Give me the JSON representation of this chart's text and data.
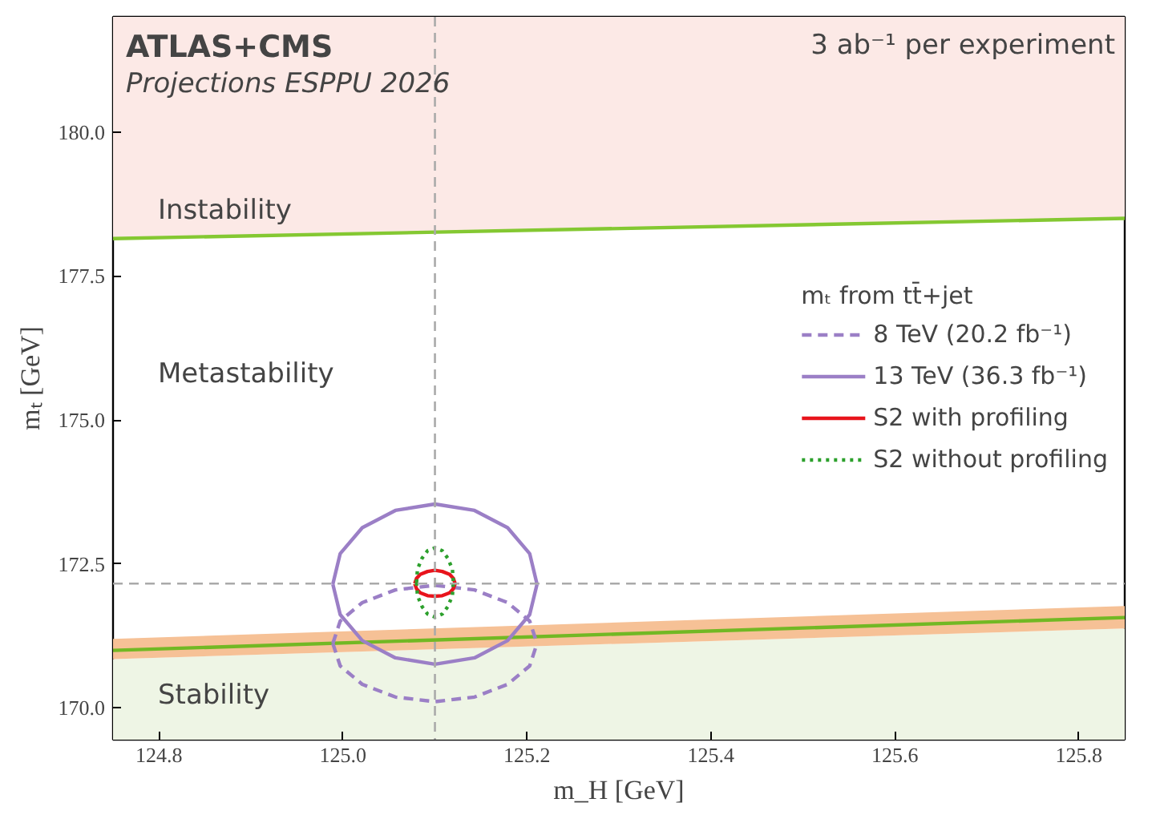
{
  "chart_data": {
    "type": "line",
    "xlabel": "m_H [GeV]",
    "ylabel": "mₜ [GeV]",
    "legend_title": "mₜ from tt̄+jet",
    "xlim": [
      124.75,
      125.85
    ],
    "ylim": [
      169.45,
      182.0
    ],
    "xticks": [
      124.8,
      {
        "value": 125.0,
        "label": "125.0"
      },
      125.2,
      125.4,
      125.6,
      125.8
    ],
    "yticks": [
      {
        "value": 170.0,
        "label": "170.0"
      },
      172.5,
      {
        "value": 175.0,
        "label": "175.0"
      },
      177.5,
      {
        "value": 180.0,
        "label": "180.0"
      }
    ],
    "grid": false,
    "legend": "right",
    "marker": "none",
    "series": [
      {
        "color": "#84c832",
        "line_style": "solid",
        "x": [
          124.75,
          125.85
        ],
        "values": [
          178.15,
          178.5
        ]
      },
      {
        "color": "#72b824",
        "line_style": "solid",
        "x": [
          124.75,
          125.85
        ],
        "values": [
          171.0,
          171.57
        ],
        "lower": [
          170.85,
          171.38
        ],
        "upper": [
          171.2,
          171.77
        ]
      },
      {
        "type": "area",
        "color": "#eef5e5",
        "x": [
          124.75,
          125.85
        ],
        "values": [
          170.85,
          171.38
        ]
      },
      {
        "name": "8 TeV (20.2 fb⁻¹)",
        "color": "#9b7fc6",
        "line_style": "dashed",
        "x": [
          124.989,
          124.997,
          125.021,
          125.057,
          125.1,
          125.143,
          125.179,
          125.203,
          125.211,
          null,
          124.989,
          124.997,
          125.021,
          125.057,
          125.1,
          125.143,
          125.179,
          125.203,
          125.211
        ],
        "values": [
          171.12,
          171.51,
          171.83,
          172.05,
          172.13,
          172.05,
          171.83,
          171.51,
          171.12,
          null,
          171.12,
          170.73,
          170.41,
          170.19,
          170.11,
          170.19,
          170.41,
          170.73,
          171.12
        ]
      },
      {
        "name": "13 TeV (36.3 fb⁻¹)",
        "color": "#9b7fc6",
        "line_style": "solid",
        "x": [
          124.989,
          124.997,
          125.021,
          125.057,
          125.1,
          125.143,
          125.179,
          125.203,
          125.211,
          null,
          124.989,
          124.997,
          125.021,
          125.057,
          125.1,
          125.143,
          125.179,
          125.203,
          125.211
        ],
        "values": [
          172.15,
          172.68,
          173.13,
          173.43,
          173.54,
          173.43,
          173.13,
          172.68,
          172.15,
          null,
          172.15,
          171.62,
          171.17,
          170.87,
          170.76,
          170.87,
          171.17,
          171.62,
          172.15
        ]
      },
      {
        "name": "S2 with profiling",
        "color": "#e8141c",
        "line_style": "solid",
        "x": [
          125.078,
          125.08,
          125.084,
          125.092,
          125.1,
          125.108,
          125.116,
          125.12,
          125.122,
          null,
          125.078,
          125.08,
          125.084,
          125.092,
          125.1,
          125.108,
          125.116,
          125.12,
          125.122
        ],
        "values": [
          172.16,
          172.25,
          172.32,
          172.37,
          172.39,
          172.37,
          172.32,
          172.25,
          172.16,
          null,
          172.16,
          172.07,
          172.0,
          171.95,
          171.94,
          171.95,
          172.0,
          172.07,
          172.16
        ]
      },
      {
        "name": "S2 without profiling",
        "color": "#2ca02c",
        "line_style": "dotted",
        "x": [
          125.08,
          125.081,
          125.086,
          125.092,
          125.1,
          125.108,
          125.114,
          125.119,
          125.12,
          null,
          125.08,
          125.081,
          125.086,
          125.092,
          125.1,
          125.108,
          125.114,
          125.119,
          125.12
        ],
        "values": [
          172.18,
          172.41,
          172.6,
          172.73,
          172.78,
          172.73,
          172.6,
          172.41,
          172.18,
          null,
          172.18,
          171.95,
          171.76,
          171.63,
          171.58,
          171.63,
          171.76,
          171.95,
          172.18
        ]
      }
    ],
    "ref_lines": [
      {
        "axis": "x",
        "value": 125.1,
        "color": "#aaaaaa",
        "line_style": "dashed"
      },
      {
        "axis": "y",
        "value": 172.16,
        "color": "#aaaaaa",
        "line_style": "dashed"
      }
    ],
    "annotations": [
      "ATLAS+CMS",
      "Projections ESPPU 2026",
      "3 ab⁻¹ per experiment",
      "Instability",
      "Metastability",
      "Stability"
    ]
  }
}
